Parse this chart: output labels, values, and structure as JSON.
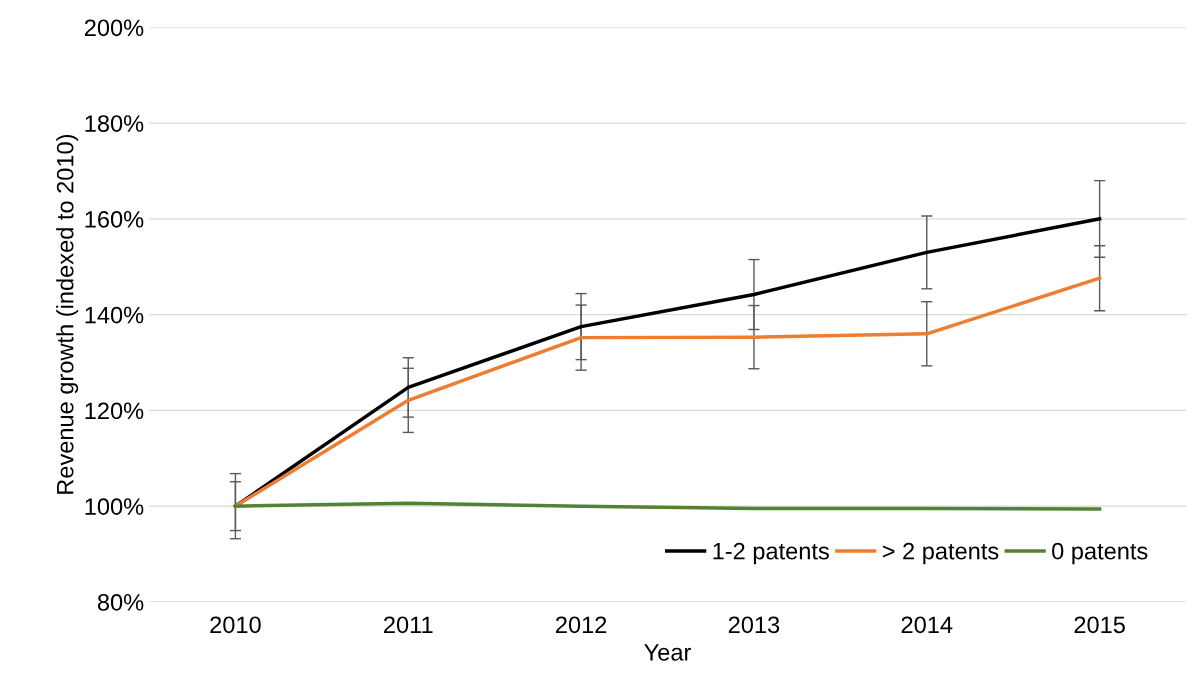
{
  "chart_data": {
    "type": "line",
    "xlabel": "Year",
    "ylabel": "Revenue growth (indexed to 2010)",
    "categories": [
      "2010",
      "2011",
      "2012",
      "2013",
      "2014",
      "2015"
    ],
    "series": [
      {
        "name": "1-2 patents",
        "color": "#000000",
        "values": [
          100,
          124.8,
          137.5,
          144.2,
          153.0,
          160.0
        ],
        "errors": [
          6.8,
          6.2,
          6.9,
          7.3,
          7.6,
          8.0
        ]
      },
      {
        "name": "> 2 patents",
        "color": "#ed7d31",
        "values": [
          100,
          122.1,
          135.2,
          135.3,
          136.0,
          147.6
        ],
        "errors": [
          5.1,
          6.7,
          6.8,
          6.6,
          6.7,
          6.8
        ]
      },
      {
        "name": "0 patents",
        "color": "#548235",
        "values": [
          100,
          100.6,
          100,
          99.5,
          99.5,
          99.4
        ]
      }
    ],
    "ylim": [
      80,
      200
    ],
    "yticks": [
      {
        "value": 80,
        "label": "80%"
      },
      {
        "value": 100,
        "label": "100%"
      },
      {
        "value": 120,
        "label": "120%"
      },
      {
        "value": 140,
        "label": "140%"
      },
      {
        "value": 160,
        "label": "160%"
      },
      {
        "value": 180,
        "label": "180%"
      },
      {
        "value": 200,
        "label": "200%"
      }
    ],
    "grid": "y",
    "legend": "bottom right",
    "marker": "none",
    "line_style": "solid"
  }
}
